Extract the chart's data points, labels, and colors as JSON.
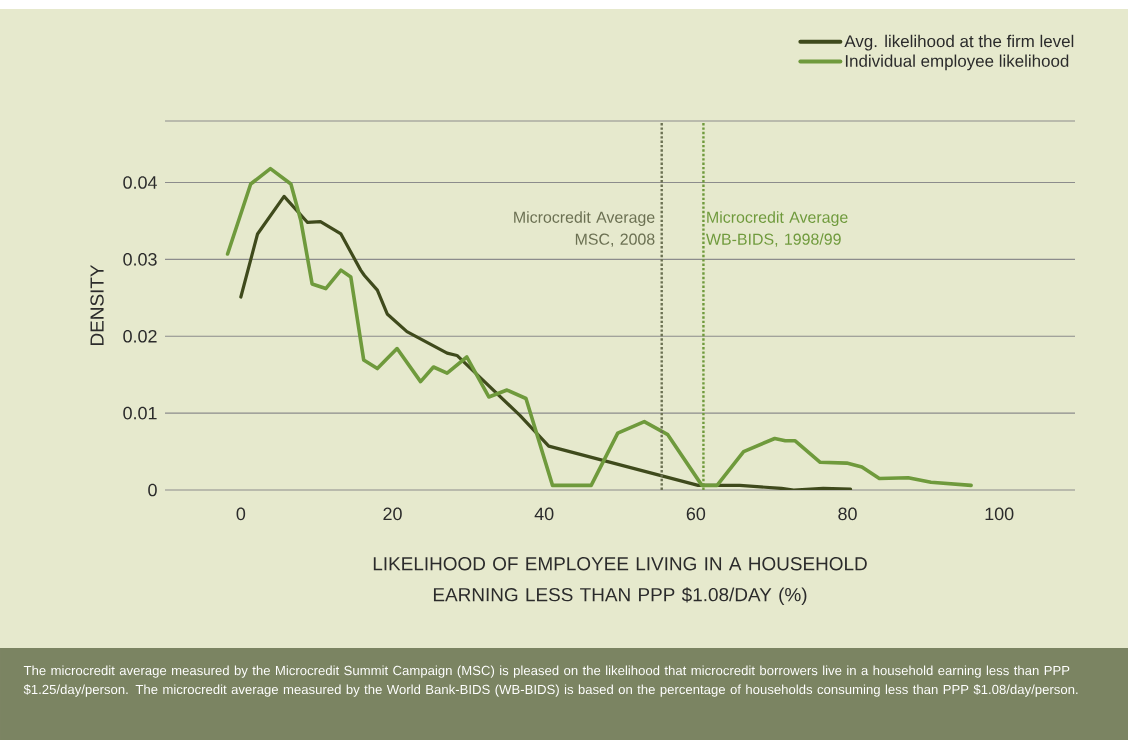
{
  "chart_data": {
    "type": "line",
    "xlabel": "LIKELIHOOD OF EMPLOYEE LIVING IN A HOUSEHOLD EARNING LESS THAN PPP $1.08/DAY (%)",
    "ylabel": "DENSITY",
    "xlim": [
      -10,
      110
    ],
    "ylim": [
      0,
      0.048
    ],
    "xticks": [
      0,
      20,
      40,
      60,
      80,
      100
    ],
    "yticks": [
      0,
      0.01,
      0.02,
      0.03,
      0.04,
      {
        "value": 0.048,
        "label": null
      }
    ],
    "grid": "y",
    "legend": "top right",
    "line_style": "solid",
    "series": [
      {
        "name": "Avg. likelihood at the firm level",
        "color": "#3f4a1c",
        "x": [
          0,
          2.2,
          5.7,
          8.8,
          10.5,
          13.2,
          15.8,
          16.3,
          18,
          19.3,
          21.9,
          27.2,
          28.5,
          36.8,
          40.6,
          60.3,
          65.8,
          71.3,
          72.9,
          76.8,
          80.4
        ],
        "values": [
          0.0251,
          0.0333,
          0.0382,
          0.0348,
          0.0349,
          0.0333,
          0.0286,
          0.0279,
          0.026,
          0.0229,
          0.0206,
          0.0178,
          0.0175,
          0.0097,
          0.0057,
          0.0006,
          0.0006,
          0.0002,
          0.0,
          0.0002,
          0.0001
        ]
      },
      {
        "name": "Individual employee likelihood",
        "color": "#6f9a3c",
        "x": [
          -1.75,
          1.3,
          3.9,
          6.6,
          7.9,
          9.4,
          11.2,
          13.2,
          14.5,
          16.2,
          18,
          20.6,
          23.7,
          25.4,
          27.2,
          29.8,
          32.7,
          35.1,
          37.6,
          41.1,
          46.2,
          49.7,
          53.2,
          56.3,
          60.8,
          62.8,
          66.3,
          70.4,
          71.8,
          73.1,
          76.4,
          79.9,
          81.9,
          84.2,
          88,
          91,
          96.3
        ],
        "values": [
          0.0307,
          0.0398,
          0.0418,
          0.0398,
          0.0351,
          0.0268,
          0.0262,
          0.0286,
          0.0277,
          0.0169,
          0.0158,
          0.0184,
          0.0141,
          0.016,
          0.0152,
          0.0173,
          0.0121,
          0.013,
          0.0119,
          0.0006,
          0.0006,
          0.0074,
          0.0089,
          0.0072,
          0.0006,
          0.0006,
          0.005,
          0.0067,
          0.0064,
          0.0064,
          0.0036,
          0.0035,
          0.003,
          0.0015,
          0.0016,
          0.001,
          0.0006
        ]
      }
    ],
    "ref_lines": [
      {
        "axis": "x",
        "value": 55.5,
        "label": "Microcredit Average MSC, 2008",
        "color": "#6b7052",
        "line_style": "dotted"
      },
      {
        "axis": "x",
        "value": 61,
        "label": "Microcredit Average WB-BIDS, 1998/99",
        "color": "#6f9a3c",
        "line_style": "dotted"
      }
    ],
    "annotations": [
      "The microcredit average measured by the Microcredit Summit Campaign (MSC) is pleased on the likelihood that microcredit borrowers live in a household earning less than PPP $1.25/day/person. The microcredit average measured by the World Bank-BIDS (WB-BIDS) is based on the percentage of households consuming less than PPP $1.08/day/person."
    ]
  }
}
